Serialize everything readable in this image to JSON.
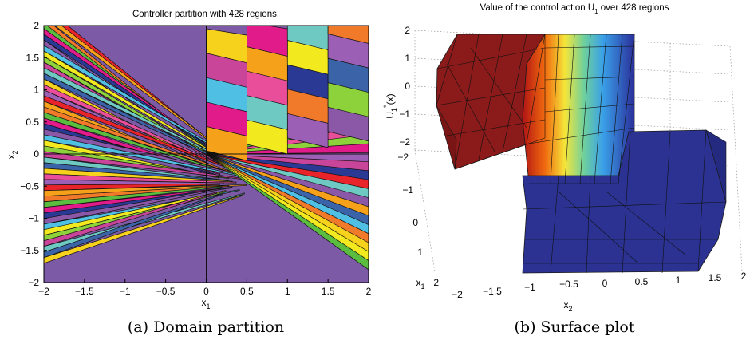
{
  "chart_data": [
    {
      "type": "heatmap",
      "title": "Controller partition with 428 regions.",
      "xlabel": "x",
      "xlabel_sub": "1",
      "ylabel": "x",
      "ylabel_sub": "2",
      "xlim": [
        -2,
        2
      ],
      "ylim": [
        -2,
        2
      ],
      "xticks": [
        "−2",
        "−1.5",
        "−1",
        "−0.5",
        "0",
        "0.5",
        "1",
        "1.5",
        "2"
      ],
      "xtick_values": [
        -2,
        -1.5,
        -1,
        -0.5,
        0,
        0.5,
        1,
        1.5,
        2
      ],
      "yticks": [
        "2",
        "1.5",
        "1",
        "0.5",
        "0",
        "−0.5",
        "−1",
        "−1.5",
        "−2"
      ],
      "ytick_values": [
        2,
        1.5,
        1,
        0.5,
        0,
        -0.5,
        -1,
        -1.5,
        -2
      ],
      "regions": 428,
      "grid": true,
      "caption": "(a)  Domain partition"
    },
    {
      "type": "area",
      "title": "Value of the control action U",
      "title_sub": "1",
      "title_suffix": " over 428 regions",
      "zlabel": "U",
      "zlabel_sub": "1",
      "zlabel_sup": "*",
      "zlabel_suffix": "(x)",
      "xlabel": "x",
      "xlabel_sub": "2",
      "ylabel": "x",
      "ylabel_sub": "1",
      "zticks": [
        "2",
        "1",
        "0",
        "−1",
        "−2"
      ],
      "x2ticks": [
        "−2",
        "−1.5",
        "−1",
        "−0.5",
        "0",
        "0.5",
        "1",
        "1.5",
        "2"
      ],
      "x1ticks": [
        "−2",
        "−1",
        "0",
        "1",
        "2"
      ],
      "zlim": [
        -2,
        2
      ],
      "upper_plateau_value": 2,
      "lower_plateau_value": -2,
      "caption": "(b)  Surface plot"
    }
  ]
}
